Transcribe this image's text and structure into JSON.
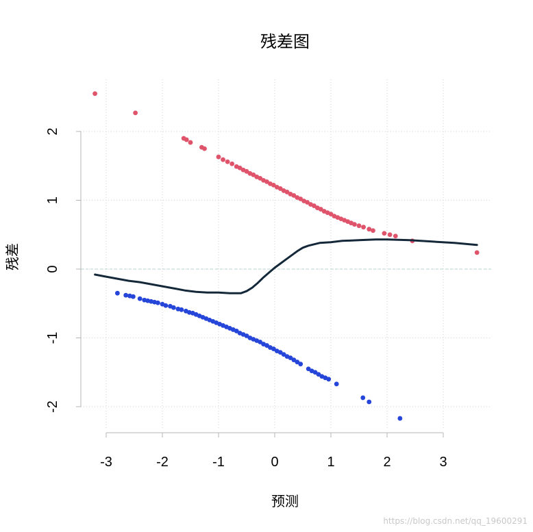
{
  "watermark": "https://blog.csdn.net/qq_19600291",
  "chart_data": {
    "type": "scatter",
    "title": "残差图",
    "xlabel": "预测",
    "ylabel": "残差",
    "xlim": [
      -3.3,
      3.7
    ],
    "ylim": [
      -2.3,
      2.65
    ],
    "xticks": [
      -3,
      -2,
      -1,
      0,
      1,
      2,
      3
    ],
    "yticks": [
      -2,
      -1,
      0,
      1,
      2
    ],
    "grid": true,
    "reference_line_y": 0,
    "colors": {
      "positive": "#DF536B",
      "negative": "#2645D9",
      "smooth": "#14283A",
      "grid": "#d2d2d2",
      "reference": "#b4d2d2",
      "axis": "#b4b4b4"
    },
    "series": [
      {
        "color": "#DF536B",
        "points": [
          [
            -3.2,
            2.55
          ],
          [
            -2.48,
            2.27
          ],
          [
            -1.62,
            1.9
          ],
          [
            -1.57,
            1.88
          ],
          [
            -1.5,
            1.84
          ],
          [
            -1.3,
            1.77
          ],
          [
            -1.25,
            1.75
          ],
          [
            -1.0,
            1.63
          ],
          [
            -0.92,
            1.59
          ],
          [
            -0.84,
            1.56
          ],
          [
            -0.76,
            1.53
          ],
          [
            -0.68,
            1.49
          ],
          [
            -0.62,
            1.47
          ],
          [
            -0.56,
            1.44
          ],
          [
            -0.5,
            1.42
          ],
          [
            -0.44,
            1.39
          ],
          [
            -0.38,
            1.37
          ],
          [
            -0.32,
            1.34
          ],
          [
            -0.26,
            1.32
          ],
          [
            -0.2,
            1.29
          ],
          [
            -0.14,
            1.27
          ],
          [
            -0.08,
            1.24
          ],
          [
            -0.02,
            1.22
          ],
          [
            0.04,
            1.19
          ],
          [
            0.1,
            1.17
          ],
          [
            0.16,
            1.14
          ],
          [
            0.22,
            1.12
          ],
          [
            0.28,
            1.09
          ],
          [
            0.34,
            1.07
          ],
          [
            0.4,
            1.04
          ],
          [
            0.46,
            1.02
          ],
          [
            0.52,
            0.99
          ],
          [
            0.58,
            0.97
          ],
          [
            0.64,
            0.94
          ],
          [
            0.7,
            0.92
          ],
          [
            0.76,
            0.89
          ],
          [
            0.82,
            0.87
          ],
          [
            0.88,
            0.84
          ],
          [
            0.94,
            0.82
          ],
          [
            1.0,
            0.8
          ],
          [
            1.06,
            0.77
          ],
          [
            1.12,
            0.75
          ],
          [
            1.18,
            0.73
          ],
          [
            1.24,
            0.71
          ],
          [
            1.3,
            0.69
          ],
          [
            1.36,
            0.67
          ],
          [
            1.42,
            0.65
          ],
          [
            1.5,
            0.63
          ],
          [
            1.58,
            0.61
          ],
          [
            1.68,
            0.58
          ],
          [
            1.75,
            0.56
          ],
          [
            1.95,
            0.52
          ],
          [
            2.05,
            0.5
          ],
          [
            2.15,
            0.48
          ],
          [
            2.45,
            0.41
          ],
          [
            3.6,
            0.24
          ]
        ]
      },
      {
        "color": "#2645D9",
        "points": [
          [
            -2.8,
            -0.35
          ],
          [
            -2.65,
            -0.38
          ],
          [
            -2.58,
            -0.39
          ],
          [
            -2.52,
            -0.4
          ],
          [
            -2.4,
            -0.43
          ],
          [
            -2.32,
            -0.45
          ],
          [
            -2.26,
            -0.46
          ],
          [
            -2.2,
            -0.47
          ],
          [
            -2.14,
            -0.48
          ],
          [
            -2.08,
            -0.49
          ],
          [
            -2.0,
            -0.51
          ],
          [
            -1.94,
            -0.53
          ],
          [
            -1.86,
            -0.54
          ],
          [
            -1.8,
            -0.56
          ],
          [
            -1.72,
            -0.58
          ],
          [
            -1.66,
            -0.59
          ],
          [
            -1.58,
            -0.61
          ],
          [
            -1.52,
            -0.63
          ],
          [
            -1.46,
            -0.64
          ],
          [
            -1.4,
            -0.66
          ],
          [
            -1.34,
            -0.68
          ],
          [
            -1.28,
            -0.7
          ],
          [
            -1.22,
            -0.72
          ],
          [
            -1.16,
            -0.74
          ],
          [
            -1.1,
            -0.76
          ],
          [
            -1.04,
            -0.78
          ],
          [
            -0.98,
            -0.8
          ],
          [
            -0.92,
            -0.82
          ],
          [
            -0.86,
            -0.84
          ],
          [
            -0.8,
            -0.86
          ],
          [
            -0.74,
            -0.88
          ],
          [
            -0.68,
            -0.9
          ],
          [
            -0.62,
            -0.93
          ],
          [
            -0.56,
            -0.95
          ],
          [
            -0.5,
            -0.97
          ],
          [
            -0.44,
            -1.0
          ],
          [
            -0.38,
            -1.02
          ],
          [
            -0.32,
            -1.04
          ],
          [
            -0.26,
            -1.06
          ],
          [
            -0.2,
            -1.09
          ],
          [
            -0.14,
            -1.11
          ],
          [
            -0.08,
            -1.14
          ],
          [
            -0.02,
            -1.16
          ],
          [
            0.04,
            -1.19
          ],
          [
            0.1,
            -1.21
          ],
          [
            0.16,
            -1.24
          ],
          [
            0.22,
            -1.27
          ],
          [
            0.28,
            -1.29
          ],
          [
            0.34,
            -1.32
          ],
          [
            0.4,
            -1.35
          ],
          [
            0.46,
            -1.38
          ],
          [
            0.6,
            -1.45
          ],
          [
            0.66,
            -1.48
          ],
          [
            0.72,
            -1.5
          ],
          [
            0.78,
            -1.53
          ],
          [
            0.84,
            -1.56
          ],
          [
            0.9,
            -1.58
          ],
          [
            0.96,
            -1.6
          ],
          [
            1.1,
            -1.67
          ],
          [
            1.57,
            -1.87
          ],
          [
            1.68,
            -1.93
          ],
          [
            2.23,
            -2.17
          ]
        ]
      }
    ],
    "smooth_line": [
      [
        -3.2,
        -0.08
      ],
      [
        -3.0,
        -0.11
      ],
      [
        -2.8,
        -0.14
      ],
      [
        -2.6,
        -0.17
      ],
      [
        -2.4,
        -0.19
      ],
      [
        -2.2,
        -0.22
      ],
      [
        -2.0,
        -0.25
      ],
      [
        -1.8,
        -0.28
      ],
      [
        -1.6,
        -0.31
      ],
      [
        -1.4,
        -0.33
      ],
      [
        -1.2,
        -0.34
      ],
      [
        -1.0,
        -0.34
      ],
      [
        -0.8,
        -0.35
      ],
      [
        -0.6,
        -0.35
      ],
      [
        -0.5,
        -0.32
      ],
      [
        -0.4,
        -0.27
      ],
      [
        -0.3,
        -0.2
      ],
      [
        -0.2,
        -0.12
      ],
      [
        -0.1,
        -0.05
      ],
      [
        0.0,
        0.02
      ],
      [
        0.1,
        0.08
      ],
      [
        0.2,
        0.14
      ],
      [
        0.3,
        0.2
      ],
      [
        0.4,
        0.26
      ],
      [
        0.5,
        0.31
      ],
      [
        0.6,
        0.34
      ],
      [
        0.7,
        0.36
      ],
      [
        0.8,
        0.38
      ],
      [
        1.0,
        0.39
      ],
      [
        1.2,
        0.41
      ],
      [
        1.5,
        0.42
      ],
      [
        1.8,
        0.43
      ],
      [
        2.0,
        0.43
      ],
      [
        2.4,
        0.42
      ],
      [
        2.8,
        0.4
      ],
      [
        3.2,
        0.38
      ],
      [
        3.6,
        0.35
      ]
    ]
  }
}
